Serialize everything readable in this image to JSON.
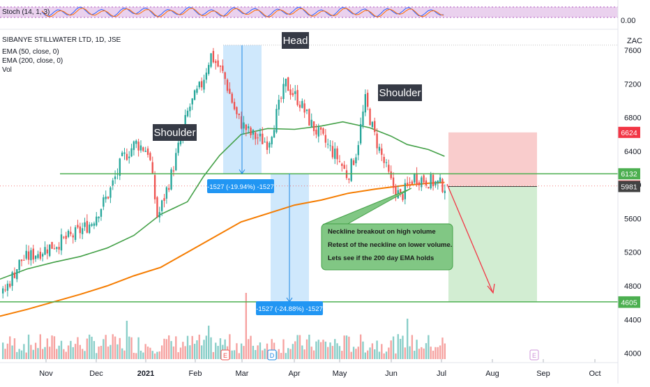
{
  "stoch": {
    "label": "Stoch (14, 1, 3)",
    "axis_value": "0.00"
  },
  "header": {
    "title": "SIBANYE STILLWATER LTD, 1D, JSE",
    "indicators": [
      "EMA (50, close, 0)",
      "EMA (200, close, 0)",
      "Vol"
    ],
    "currency": "ZAC"
  },
  "annotations": {
    "head": "Head",
    "left_shoulder": "Shoulder",
    "right_shoulder": "Shoulder",
    "measure_1": "-1527 (-19.94%) -1527",
    "measure_2": "-1527 (-24.88%) -1527",
    "note_lines": [
      "Neckline breakout on high volume",
      "Retest of the neckline on lower volume.",
      "Lets see if the 200 day EMA holds"
    ],
    "event_markers": [
      "E",
      "D",
      "E"
    ]
  },
  "colors": {
    "up": "#26a69a",
    "down": "#ef5350",
    "ema50": "#43a047",
    "ema200": "#f57c00",
    "neckline": "#4caf50",
    "target": "#4caf50",
    "stop_zone": "#f8c3c3",
    "target_zone": "#cdebcd",
    "measure_box": "#bbdefb",
    "measure_label": "#2196f3",
    "note_bg": "#81c784",
    "stoch_bg": "#e1bee7"
  },
  "chart_data": {
    "type": "candlestick",
    "x_axis_labels": [
      "Nov",
      "Dec",
      "2021",
      "Feb",
      "Mar",
      "Apr",
      "May",
      "Jun",
      "Jul",
      "Aug",
      "Sep",
      "Oct"
    ],
    "y_axis_ticks": [
      7600,
      7200,
      6800,
      6400,
      6000,
      5600,
      5200,
      4800,
      4400,
      4000
    ],
    "ylim": [
      3930,
      7700
    ],
    "price_tags": [
      {
        "value": "6624",
        "color": "#f23645",
        "text": "#ffffff"
      },
      {
        "value": "6132",
        "color": "#4caf50",
        "text": "#ffffff"
      },
      {
        "value": "5987",
        "color": "#ef5350",
        "text": "#ffffff"
      },
      {
        "value": "5981",
        "color": "#424242",
        "text": "#ffffff"
      },
      {
        "value": "4610",
        "color": "#4caf50",
        "text": "#ffffff"
      },
      {
        "value": "4605",
        "color": "#4caf50",
        "text": "#ffffff"
      }
    ],
    "levels": {
      "neckline": 6132,
      "target": 4610,
      "last_close": 5987,
      "stop_top": 6624,
      "entry": 5981
    },
    "pattern_points": {
      "left_shoulder": 6550,
      "head": 7630,
      "right_shoulder": 7000
    },
    "measures": [
      {
        "from": 7660,
        "to": 6133,
        "change": "-1527 (-19.94%)"
      },
      {
        "from": 6137,
        "to": 4610,
        "change": "-1527 (-24.88%)"
      }
    ],
    "ema50_path": [
      [
        0,
        4880
      ],
      [
        0.05,
        5000
      ],
      [
        0.1,
        5080
      ],
      [
        0.15,
        5150
      ],
      [
        0.2,
        5250
      ],
      [
        0.25,
        5400
      ],
      [
        0.3,
        5650
      ],
      [
        0.35,
        5800
      ],
      [
        0.38,
        6100
      ],
      [
        0.41,
        6350
      ],
      [
        0.45,
        6600
      ],
      [
        0.5,
        6670
      ],
      [
        0.55,
        6660
      ],
      [
        0.6,
        6700
      ],
      [
        0.64,
        6750
      ],
      [
        0.69,
        6680
      ],
      [
        0.73,
        6580
      ],
      [
        0.76,
        6480
      ],
      [
        0.8,
        6420
      ],
      [
        0.83,
        6340
      ]
    ],
    "ema200_path": [
      [
        0,
        4440
      ],
      [
        0.05,
        4520
      ],
      [
        0.1,
        4610
      ],
      [
        0.15,
        4700
      ],
      [
        0.2,
        4800
      ],
      [
        0.25,
        4920
      ],
      [
        0.3,
        5020
      ],
      [
        0.35,
        5200
      ],
      [
        0.4,
        5380
      ],
      [
        0.45,
        5560
      ],
      [
        0.5,
        5660
      ],
      [
        0.55,
        5760
      ],
      [
        0.6,
        5820
      ],
      [
        0.65,
        5900
      ],
      [
        0.7,
        5950
      ],
      [
        0.75,
        5990
      ],
      [
        0.8,
        6020
      ],
      [
        0.83,
        6030
      ]
    ],
    "volume_axis_max": "high",
    "grid": false,
    "legend": "top-left"
  }
}
